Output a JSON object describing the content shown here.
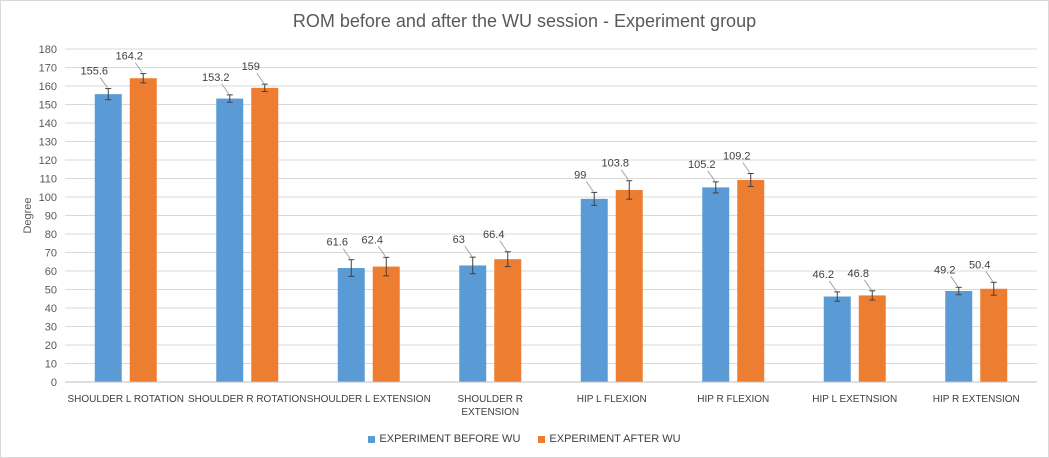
{
  "chart_data": {
    "type": "bar",
    "title": "ROM before and after the WU session - Experiment group",
    "xlabel": "",
    "ylabel": "Degree",
    "ylim": [
      0,
      180
    ],
    "ytick_step": 10,
    "grid": true,
    "legend_position": "bottom",
    "categories": [
      [
        "SHOULDER L ROTATION"
      ],
      [
        "SHOULDER R ROTATION"
      ],
      [
        "SHOULDER L EXTENSION"
      ],
      [
        "SHOULDER R",
        "EXTENSION"
      ],
      [
        "HIP L FLEXION"
      ],
      [
        "HIP R FLEXION"
      ],
      [
        "HIP L EXETNSION"
      ],
      [
        "HIP R EXTENSION"
      ]
    ],
    "series": [
      {
        "name": "EXPERIMENT BEFORE WU",
        "color": "#5b9bd5",
        "values": [
          155.6,
          153.2,
          61.6,
          63,
          99,
          105.2,
          46.2,
          49.2
        ],
        "errors": [
          3,
          2,
          4.5,
          4.5,
          3.5,
          3,
          2.5,
          2
        ]
      },
      {
        "name": "EXPERIMENT AFTER WU",
        "color": "#ed7d31",
        "values": [
          164.2,
          159,
          62.4,
          66.4,
          103.8,
          109.2,
          46.8,
          50.4
        ],
        "errors": [
          2.5,
          2,
          5,
          4,
          5,
          3.5,
          2.5,
          3.5
        ]
      }
    ]
  }
}
